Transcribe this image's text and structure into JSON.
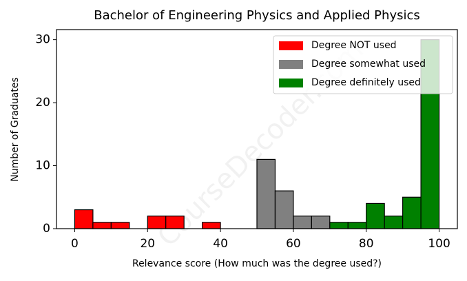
{
  "chart_data": {
    "type": "histogram",
    "title": "Bachelor of Engineering Physics and Applied Physics",
    "xlabel": "Relevance score (How much was the degree used?)",
    "ylabel": "Number of Graduates",
    "watermark": "CourseDecoder.com",
    "bins": [
      0,
      5,
      10,
      15,
      20,
      25,
      30,
      35,
      40,
      45,
      50,
      55,
      60,
      65,
      70,
      75,
      80,
      85,
      90,
      95,
      100
    ],
    "series": [
      {
        "name": "Degree NOT used",
        "color": "#ff0000",
        "values": [
          3,
          1,
          1,
          0,
          2,
          2,
          0,
          1,
          0,
          0,
          0,
          0,
          0,
          0,
          0,
          0,
          0,
          0,
          0,
          0
        ]
      },
      {
        "name": "Degree somewhat used",
        "color": "#808080",
        "values": [
          0,
          0,
          0,
          0,
          0,
          0,
          0,
          0,
          0,
          0,
          11,
          6,
          2,
          2,
          0,
          0,
          0,
          0,
          0,
          0
        ]
      },
      {
        "name": "Degree definitely used",
        "color": "#008000",
        "values": [
          0,
          0,
          0,
          0,
          0,
          0,
          0,
          0,
          0,
          0,
          0,
          0,
          0,
          0,
          1,
          1,
          4,
          2,
          5,
          30
        ]
      }
    ],
    "xlim": [
      -5,
      105
    ],
    "xticks": [
      0,
      20,
      40,
      60,
      80,
      100
    ],
    "ylim": [
      0,
      31.6
    ],
    "yticks": [
      0,
      10,
      20,
      30
    ],
    "legend": "upper right"
  }
}
